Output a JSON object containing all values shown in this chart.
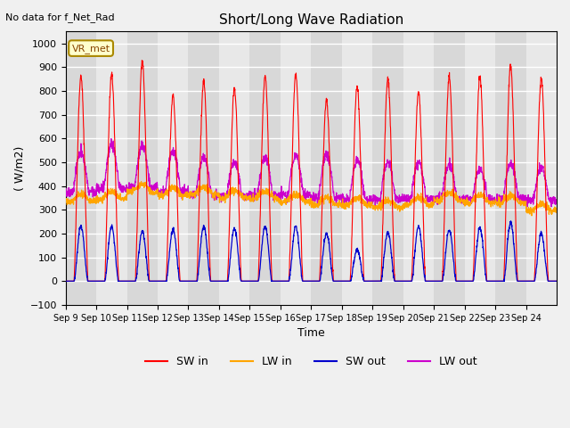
{
  "title": "Short/Long Wave Radiation",
  "xlabel": "Time",
  "ylabel": "( W/m2)",
  "top_left_text": "No data for f_Net_Rad",
  "box_label": "VR_met",
  "ylim": [
    -100,
    1050
  ],
  "yticks": [
    -100,
    0,
    100,
    200,
    300,
    400,
    500,
    600,
    700,
    800,
    900,
    1000
  ],
  "num_days": 16,
  "xtick_labels": [
    "Sep 9",
    "Sep 10",
    "Sep 11",
    "Sep 12",
    "Sep 13",
    "Sep 14",
    "Sep 15",
    "Sep 16",
    "Sep 17",
    "Sep 18",
    "Sep 19",
    "Sep 20",
    "Sep 21",
    "Sep 22",
    "Sep 23",
    "Sep 24"
  ],
  "background_color": "#e8e8e8",
  "plot_bg_color": "#e8e8e8",
  "sw_in_peaks": [
    860,
    870,
    920,
    780,
    840,
    810,
    860,
    870,
    760,
    820,
    850,
    795,
    860,
    860,
    905,
    855
  ],
  "sw_out_peaks": [
    230,
    230,
    210,
    215,
    230,
    220,
    230,
    230,
    205,
    130,
    205,
    230,
    215,
    225,
    245,
    200
  ],
  "lw_in_base": [
    335,
    345,
    375,
    360,
    365,
    350,
    345,
    335,
    320,
    320,
    310,
    320,
    340,
    330,
    330,
    295
  ],
  "lw_out_day": [
    540,
    575,
    570,
    545,
    520,
    500,
    520,
    525,
    530,
    510,
    500,
    500,
    490,
    470,
    490,
    480
  ],
  "lw_out_night": [
    375,
    390,
    390,
    375,
    360,
    355,
    360,
    360,
    350,
    345,
    345,
    345,
    345,
    345,
    345,
    340
  ]
}
